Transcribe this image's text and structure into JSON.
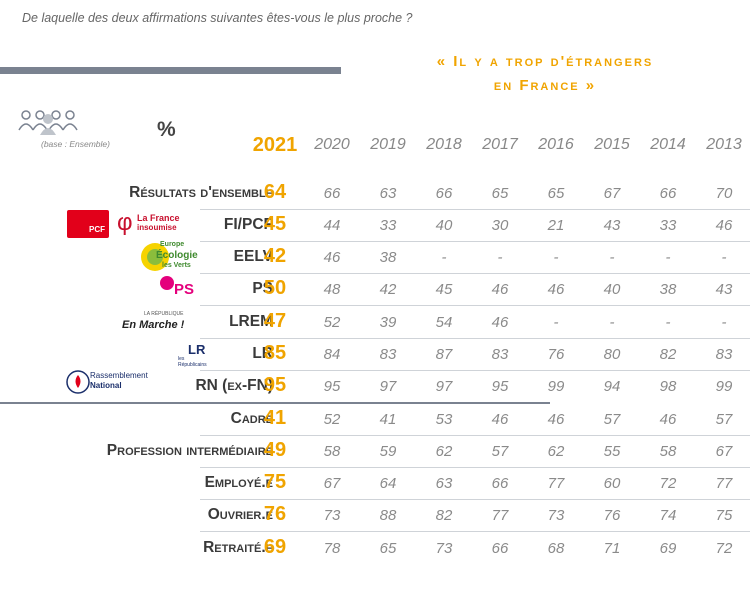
{
  "question": "De laquelle des deux affirmations suivantes êtes-vous le plus proche ?",
  "headline": [
    "« Il y a trop d'étrangers",
    "en France »"
  ],
  "base": "(base : Ensemble)",
  "unit": "%",
  "logos": {
    "pcf": "PCF",
    "lfi": [
      "La France",
      "insoumise"
    ],
    "eelv": [
      "Europe",
      "Écologie",
      "les Verts"
    ],
    "ps": "PS",
    "lrem": [
      "LA RÉPUBLIQUE",
      "En Marche !"
    ],
    "lr": [
      "LR",
      "les",
      "Républicains"
    ],
    "rn": [
      "Rassemblement",
      "National"
    ]
  },
  "chart_data": {
    "type": "table",
    "columns": [
      "2021",
      "2020",
      "2019",
      "2018",
      "2017",
      "2016",
      "2015",
      "2014",
      "2013"
    ],
    "rows": [
      {
        "label": "Résultats d'ensemble",
        "values": [
          "64",
          "66",
          "63",
          "66",
          "65",
          "65",
          "67",
          "66",
          "70"
        ]
      },
      {
        "label": "FI/PCF",
        "values": [
          "45",
          "44",
          "33",
          "40",
          "30",
          "21",
          "43",
          "33",
          "46"
        ]
      },
      {
        "label": "EELV",
        "values": [
          "42",
          "46",
          "38",
          "-",
          "-",
          "-",
          "-",
          "-",
          "-"
        ]
      },
      {
        "label": "PS",
        "values": [
          "50",
          "48",
          "42",
          "45",
          "46",
          "46",
          "40",
          "38",
          "43"
        ]
      },
      {
        "label": "LREM",
        "values": [
          "47",
          "52",
          "39",
          "54",
          "46",
          "-",
          "-",
          "-",
          "-"
        ]
      },
      {
        "label": "LR",
        "values": [
          "85",
          "84",
          "83",
          "87",
          "83",
          "76",
          "80",
          "82",
          "83"
        ]
      },
      {
        "label": "RN (ex-FN)",
        "values": [
          "95",
          "95",
          "97",
          "97",
          "95",
          "99",
          "94",
          "98",
          "99"
        ]
      },
      {
        "label": "Cadre",
        "values": [
          "41",
          "52",
          "41",
          "53",
          "46",
          "46",
          "57",
          "46",
          "57"
        ]
      },
      {
        "label": "Profession intermédiaire",
        "values": [
          "49",
          "58",
          "59",
          "62",
          "57",
          "62",
          "55",
          "58",
          "67"
        ]
      },
      {
        "label": "Employé.e",
        "values": [
          "75",
          "67",
          "64",
          "63",
          "66",
          "77",
          "60",
          "72",
          "77"
        ]
      },
      {
        "label": "Ouvrier.e",
        "values": [
          "76",
          "73",
          "88",
          "82",
          "77",
          "73",
          "76",
          "74",
          "75"
        ]
      },
      {
        "label": "Retraité.e",
        "values": [
          "69",
          "78",
          "65",
          "73",
          "66",
          "68",
          "71",
          "69",
          "72"
        ]
      }
    ]
  }
}
